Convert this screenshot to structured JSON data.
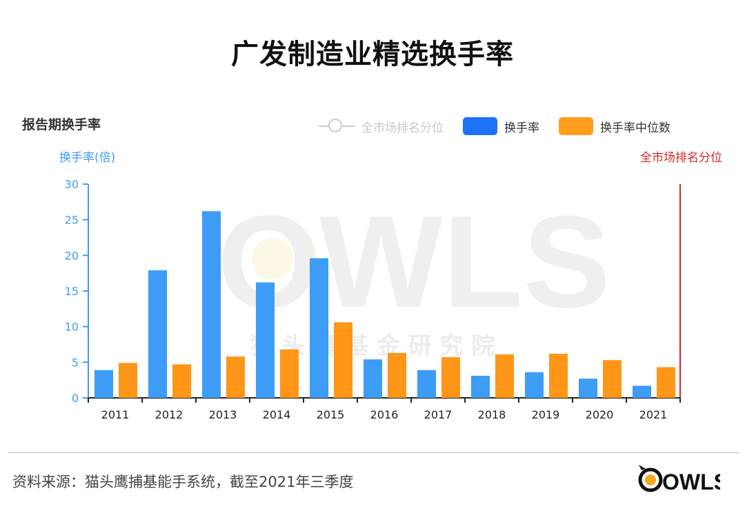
{
  "title": "广发制造业精选换手率",
  "subtitle": "报告期换手率",
  "legend": {
    "rank": "全市场排名分位",
    "turnover": "换手率",
    "median": "换手率中位数"
  },
  "axis": {
    "left_label": "换手率(倍)",
    "right_label": "全市场排名分位"
  },
  "watermark": {
    "brand": "OWLS",
    "cn": "猫 头 鹰 基 金 研 究 院"
  },
  "source": "资料来源：猫头鹰捕基能手系统，截至2021年三季度",
  "logo_text": "OWLS",
  "colors": {
    "turnover": "#3d9cf6",
    "median": "#ff9617",
    "legend_turnover": "#1e72f5",
    "legend_median": "#ff9d1c",
    "axis": "#3d9cf6",
    "right_axis": "#d42525"
  },
  "chart_data": {
    "type": "bar",
    "title": "报告期换手率",
    "ylabel": "换手率(倍)",
    "ylabel_right": "全市场排名分位",
    "ylim": [
      0,
      30
    ],
    "yticks": [
      0,
      5,
      10,
      15,
      20,
      25,
      30
    ],
    "categories": [
      "2011",
      "2012",
      "2013",
      "2014",
      "2015",
      "2016",
      "2017",
      "2018",
      "2019",
      "2020",
      "2021"
    ],
    "series": [
      {
        "name": "换手率",
        "values": [
          3.9,
          17.9,
          26.2,
          16.2,
          19.6,
          5.4,
          3.9,
          3.1,
          3.6,
          2.7,
          1.7
        ]
      },
      {
        "name": "换手率中位数",
        "values": [
          4.9,
          4.7,
          5.8,
          6.8,
          10.6,
          6.3,
          5.7,
          6.1,
          6.2,
          5.3,
          4.3
        ]
      }
    ],
    "legend": [
      "全市场排名分位",
      "换手率",
      "换手率中位数"
    ]
  }
}
